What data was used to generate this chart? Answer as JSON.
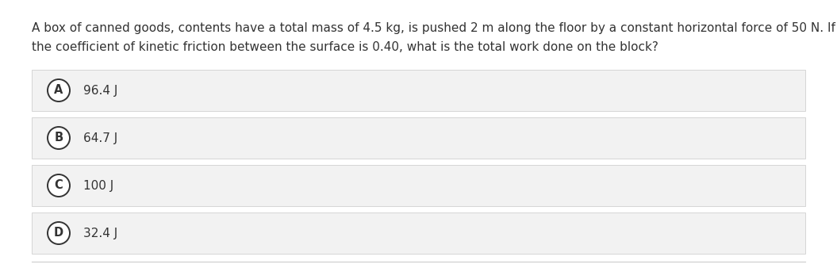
{
  "question_line1": "A box of canned goods, contents have a total mass of 4.5 kg, is pushed 2 m along the floor by a constant horizontal force of 50 N. If",
  "question_line2": "the coefficient of kinetic friction between the surface is 0.40, what is the total work done on the block?",
  "options": [
    {
      "label": "A",
      "text": "96.4 J"
    },
    {
      "label": "B",
      "text": "64.7 J"
    },
    {
      "label": "C",
      "text": "100 J"
    },
    {
      "label": "D",
      "text": "32.4 J"
    }
  ],
  "bg_color": "#ffffff",
  "option_bg_color": "#f2f2f2",
  "option_border_color": "#d0d0d0",
  "text_color": "#333333",
  "circle_edge_color": "#333333",
  "circle_face_color": "#ffffff",
  "question_fontsize": 11.0,
  "option_fontsize": 11.0,
  "label_fontsize": 10.5,
  "bottom_line_color": "#cccccc"
}
